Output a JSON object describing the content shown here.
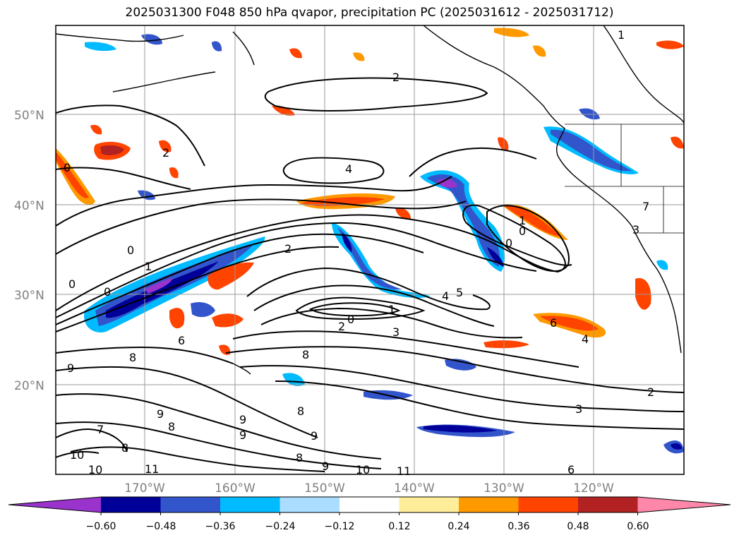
{
  "title": "2025031300 F048 850 hPa qvapor, precipitation PC (2025031612 - 2025031712)",
  "map": {
    "projection": "plate-carree",
    "lon_range": [
      -180,
      -110
    ],
    "lat_range": [
      10,
      60
    ],
    "gridlines": true,
    "lat_labels": [
      "50°N",
      "40°N",
      "30°N",
      "20°N"
    ],
    "lon_labels": [
      "170°W",
      "160°W",
      "150°W",
      "140°W",
      "130°W",
      "120°W"
    ]
  },
  "contour_labels": [
    {
      "text": "1"
    },
    {
      "text": "2"
    },
    {
      "text": "2"
    },
    {
      "text": "4"
    },
    {
      "text": "0"
    },
    {
      "text": "1"
    },
    {
      "text": "0"
    },
    {
      "text": "0"
    },
    {
      "text": "2"
    },
    {
      "text": "4"
    },
    {
      "text": "5"
    },
    {
      "text": "1"
    },
    {
      "text": "0"
    },
    {
      "text": "2"
    },
    {
      "text": "3"
    },
    {
      "text": "8"
    },
    {
      "text": "6"
    },
    {
      "text": "4"
    },
    {
      "text": "2"
    },
    {
      "text": "3"
    },
    {
      "text": "9"
    },
    {
      "text": "8"
    },
    {
      "text": "9"
    },
    {
      "text": "8"
    },
    {
      "text": "9"
    },
    {
      "text": "9"
    },
    {
      "text": "8"
    },
    {
      "text": "10"
    },
    {
      "text": "11"
    },
    {
      "text": "10"
    },
    {
      "text": "11"
    },
    {
      "text": "6"
    },
    {
      "text": "8"
    },
    {
      "text": "7"
    },
    {
      "text": "9"
    },
    {
      "text": "6"
    },
    {
      "text": "8"
    },
    {
      "text": "0"
    },
    {
      "text": "0"
    },
    {
      "text": "0"
    },
    {
      "text": "1"
    },
    {
      "text": "9"
    },
    {
      "text": "10"
    },
    {
      "text": "3"
    },
    {
      "text": "7"
    }
  ],
  "colorbar": {
    "ticks": [
      "−0.60",
      "−0.48",
      "−0.36",
      "−0.24",
      "−0.12",
      "0.12",
      "0.24",
      "0.36",
      "0.48",
      "0.60"
    ],
    "colors": [
      "#9933cc",
      "#000099",
      "#3355cc",
      "#00bbff",
      "#aaddff",
      "#ffffff",
      "#ffee99",
      "#ff9900",
      "#ff4400",
      "#b22222",
      "#ff88aa"
    ]
  }
}
